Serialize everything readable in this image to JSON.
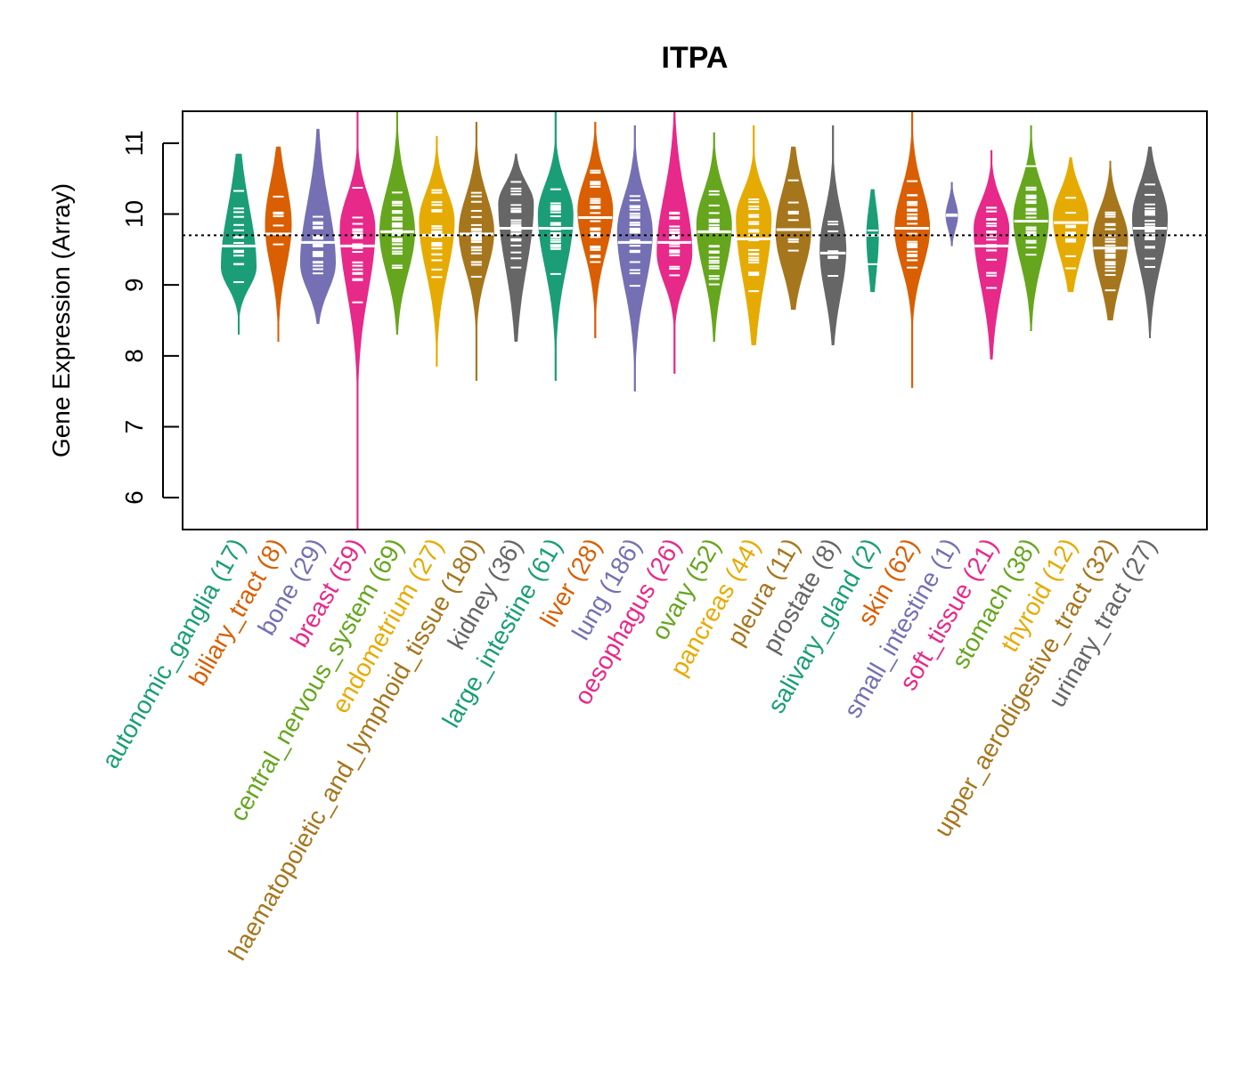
{
  "chart_data": {
    "type": "violin",
    "title": "ITPA",
    "xlabel": "",
    "ylabel": "Gene Expression (Array)",
    "ylim": [
      5.55,
      11.45
    ],
    "yticks": [
      6,
      7,
      8,
      9,
      10,
      11
    ],
    "reference_line": 9.7,
    "categories": [
      {
        "name": "autonomic_ganglia",
        "n": 17,
        "color": "#1B9E77",
        "min": 8.3,
        "max": 10.85,
        "median": 9.55,
        "q1": 9.15,
        "q3": 10.0,
        "peak": 9.25
      },
      {
        "name": "biliary_tract",
        "n": 8,
        "color": "#D95F02",
        "min": 8.2,
        "max": 10.95,
        "median": 9.72,
        "q1": 9.4,
        "q3": 10.3,
        "peak": 9.85
      },
      {
        "name": "bone",
        "n": 29,
        "color": "#7570B3",
        "min": 8.45,
        "max": 11.2,
        "median": 9.6,
        "q1": 9.1,
        "q3": 10.05,
        "peak": 9.3
      },
      {
        "name": "breast",
        "n": 59,
        "color": "#E7298A",
        "min": 5.55,
        "max": 11.45,
        "median": 9.55,
        "q1": 9.0,
        "q3": 10.1,
        "peak": 9.8
      },
      {
        "name": "central_nervous_system",
        "n": 69,
        "color": "#66A61E",
        "min": 8.3,
        "max": 11.45,
        "median": 9.75,
        "q1": 9.3,
        "q3": 10.2,
        "peak": 9.75
      },
      {
        "name": "endometrium",
        "n": 27,
        "color": "#E6AB02",
        "min": 7.85,
        "max": 11.1,
        "median": 9.7,
        "q1": 9.3,
        "q3": 10.15,
        "peak": 9.9
      },
      {
        "name": "haematopoietic_and_lymphoid_tissue",
        "n": 180,
        "color": "#A6761D",
        "min": 7.65,
        "max": 11.3,
        "median": 9.72,
        "q1": 9.35,
        "q3": 10.1,
        "peak": 9.75
      },
      {
        "name": "kidney",
        "n": 36,
        "color": "#666666",
        "min": 8.2,
        "max": 10.85,
        "median": 9.8,
        "q1": 9.35,
        "q3": 10.25,
        "peak": 10.15
      },
      {
        "name": "large_intestine",
        "n": 61,
        "color": "#1B9E77",
        "min": 7.65,
        "max": 11.45,
        "median": 9.8,
        "q1": 9.35,
        "q3": 10.25,
        "peak": 10.0
      },
      {
        "name": "liver",
        "n": 28,
        "color": "#D95F02",
        "min": 8.25,
        "max": 11.3,
        "median": 9.95,
        "q1": 9.6,
        "q3": 10.35,
        "peak": 10.05
      },
      {
        "name": "lung",
        "n": 186,
        "color": "#7570B3",
        "min": 7.5,
        "max": 11.25,
        "median": 9.6,
        "q1": 9.1,
        "q3": 10.1,
        "peak": 9.75
      },
      {
        "name": "oesophagus",
        "n": 26,
        "color": "#E7298A",
        "min": 7.75,
        "max": 11.45,
        "median": 9.6,
        "q1": 9.2,
        "q3": 10.15,
        "peak": 9.45
      },
      {
        "name": "ovary",
        "n": 52,
        "color": "#66A61E",
        "min": 8.2,
        "max": 11.15,
        "median": 9.75,
        "q1": 9.3,
        "q3": 10.15,
        "peak": 9.85
      },
      {
        "name": "pancreas",
        "n": 44,
        "color": "#E6AB02",
        "min": 8.15,
        "max": 11.25,
        "median": 9.65,
        "q1": 9.15,
        "q3": 10.15,
        "peak": 9.95
      },
      {
        "name": "pleura",
        "n": 11,
        "color": "#A6761D",
        "min": 8.65,
        "max": 10.95,
        "median": 9.78,
        "q1": 9.35,
        "q3": 10.2,
        "peak": 9.75
      },
      {
        "name": "prostate",
        "n": 8,
        "color": "#666666",
        "min": 8.15,
        "max": 11.25,
        "median": 9.45,
        "q1": 9.0,
        "q3": 9.9,
        "peak": 9.5
      },
      {
        "name": "salivary_gland",
        "n": 2,
        "color": "#1B9E77",
        "min": 8.9,
        "max": 10.35,
        "median": 9.7,
        "q1": 9.3,
        "q3": 9.95,
        "peak": 9.7
      },
      {
        "name": "skin",
        "n": 62,
        "color": "#D95F02",
        "min": 7.55,
        "max": 11.45,
        "median": 9.8,
        "q1": 9.4,
        "q3": 10.2,
        "peak": 9.8
      },
      {
        "name": "small_intestine",
        "n": 1,
        "color": "#7570B3",
        "min": 9.55,
        "max": 10.45,
        "median": 9.98,
        "q1": 9.98,
        "q3": 9.98,
        "peak": 9.98
      },
      {
        "name": "soft_tissue",
        "n": 21,
        "color": "#E7298A",
        "min": 7.95,
        "max": 10.9,
        "median": 9.55,
        "q1": 9.1,
        "q3": 10.0,
        "peak": 9.8
      },
      {
        "name": "stomach",
        "n": 38,
        "color": "#66A61E",
        "min": 8.35,
        "max": 11.25,
        "median": 9.9,
        "q1": 9.45,
        "q3": 10.25,
        "peak": 9.95
      },
      {
        "name": "thyroid",
        "n": 12,
        "color": "#E6AB02",
        "min": 8.9,
        "max": 10.8,
        "median": 9.88,
        "q1": 9.55,
        "q3": 10.15,
        "peak": 9.95
      },
      {
        "name": "upper_aerodigestive_tract",
        "n": 32,
        "color": "#A6761D",
        "min": 8.5,
        "max": 10.75,
        "median": 9.52,
        "q1": 9.2,
        "q3": 9.9,
        "peak": 9.65
      },
      {
        "name": "urinary_tract",
        "n": 27,
        "color": "#666666",
        "min": 8.25,
        "max": 10.95,
        "median": 9.8,
        "q1": 9.4,
        "q3": 10.25,
        "peak": 9.95
      }
    ]
  }
}
